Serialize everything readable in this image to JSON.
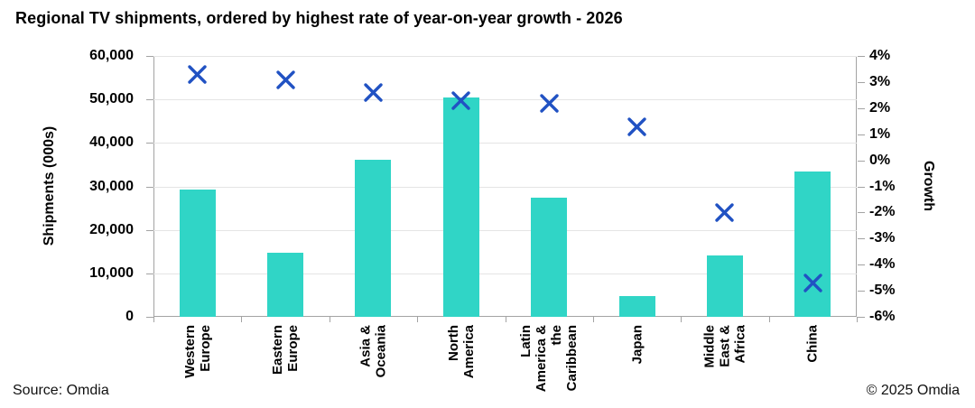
{
  "title": "Regional TV shipments, ordered by highest rate of year-on-year growth - 2026",
  "footer": {
    "source": "Source: Omdia",
    "copyright": "© 2025 Omdia"
  },
  "chart_data": {
    "type": "bar",
    "title": "Regional TV shipments, ordered by highest rate of year-on-year growth - 2026",
    "categories": [
      "Western Europe",
      "Eastern Europe",
      "Asia & Oceania",
      "North America",
      "Latin America & the Caribbean",
      "Japan",
      "Middle East & Africa",
      "China"
    ],
    "category_label_lines": [
      [
        "Western",
        "Europe"
      ],
      [
        "Eastern",
        "Europe"
      ],
      [
        "Asia &",
        "Oceania"
      ],
      [
        "North",
        "America"
      ],
      [
        "Latin",
        "America &",
        "the",
        "Caribbean"
      ],
      [
        "Japan"
      ],
      [
        "Middle",
        "East &",
        "Africa"
      ],
      [
        "China"
      ]
    ],
    "series": [
      {
        "name": "Shipments (000s)",
        "type": "bar",
        "axis": "left",
        "values": [
          29300,
          14700,
          36200,
          50400,
          27400,
          4800,
          14200,
          33400
        ]
      },
      {
        "name": "Growth",
        "type": "scatter",
        "marker": "x",
        "axis": "right",
        "values": [
          3.3,
          3.1,
          2.6,
          2.3,
          2.2,
          1.3,
          -2,
          -4.7
        ]
      }
    ],
    "left_axis": {
      "label": "Shipments (000s)",
      "min": 0,
      "max": 60000,
      "ticks": [
        "60,000",
        "50,000",
        "40,000",
        "30,000",
        "20,000",
        "10,000",
        "0"
      ]
    },
    "right_axis": {
      "label": "Growth",
      "min": -6,
      "max": 4,
      "ticks": [
        "4%",
        "3%",
        "2%",
        "1%",
        "0%",
        "-1%",
        "-2%",
        "-3%",
        "-4%",
        "-5%",
        "-6%"
      ]
    },
    "grid": true,
    "legend": false,
    "colors": {
      "bar": "#30D5C6",
      "marker": "#2152C3",
      "gridline": "#E4E4E4",
      "axis": "#A3A3A3",
      "text": "#000000"
    }
  }
}
